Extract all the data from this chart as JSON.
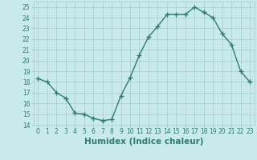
{
  "x": [
    0,
    1,
    2,
    3,
    4,
    5,
    6,
    7,
    8,
    9,
    10,
    11,
    12,
    13,
    14,
    15,
    16,
    17,
    18,
    19,
    20,
    21,
    22,
    23
  ],
  "y": [
    18.3,
    18.0,
    17.0,
    16.5,
    15.1,
    15.0,
    14.6,
    14.4,
    14.5,
    16.7,
    18.4,
    20.5,
    22.2,
    23.2,
    24.3,
    24.3,
    24.3,
    25.0,
    24.5,
    24.0,
    22.5,
    21.5,
    19.0,
    18.0
  ],
  "line_color": "#2e7d6e",
  "marker": "+",
  "marker_size": 4,
  "marker_lw": 1.0,
  "bg_color": "#c8eaea",
  "grid_color": "#a8cccc",
  "xlabel": "Humidex (Indice chaleur)",
  "xlim": [
    -0.5,
    23.5
  ],
  "ylim": [
    14,
    25.5
  ],
  "yticks": [
    14,
    15,
    16,
    17,
    18,
    19,
    20,
    21,
    22,
    23,
    24,
    25
  ],
  "xticks": [
    0,
    1,
    2,
    3,
    4,
    5,
    6,
    7,
    8,
    9,
    10,
    11,
    12,
    13,
    14,
    15,
    16,
    17,
    18,
    19,
    20,
    21,
    22,
    23
  ],
  "tick_color": "#2e7d6e",
  "tick_fontsize": 5.5,
  "xlabel_fontsize": 7.5,
  "xlabel_color": "#2e7d6e",
  "line_width": 1.0
}
